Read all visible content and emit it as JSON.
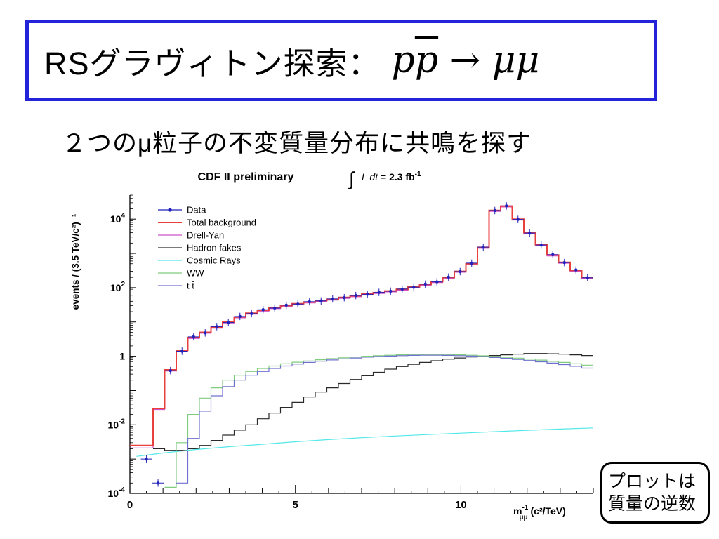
{
  "slide": {
    "title_text": "RSグラヴィトン探索：",
    "title_math_p1": "p",
    "title_math_p2": "p",
    "title_math_rest": " → μμ",
    "subtitle": "２つのμ粒子の不変質量分布に共鳴を探す",
    "callout": {
      "line1": "プロットは",
      "line2": "質量の逆数"
    }
  },
  "colors": {
    "title_box_border": "#2323d9",
    "callout_border": "#000000"
  },
  "chart_data": {
    "type": "line",
    "title_left": "CDF II preliminary",
    "title_right_parts": {
      "integral": "∫",
      "lumi": "L dt",
      "equals": "=",
      "value": "2.3 fb",
      "value_sup": "-1"
    },
    "ylabel": "events / (3.5 TeV/c²)⁻¹",
    "xlabel_parts": {
      "base": "m",
      "sup": "-1",
      "sub": "μμ",
      "rest": " (c²/TeV)"
    },
    "xlim": [
      0,
      14
    ],
    "ylim_log10": [
      -4,
      4.7
    ],
    "x_major_ticks": [
      0,
      5,
      10
    ],
    "y_tick_labels": [
      {
        "exp": 4,
        "base": "10",
        "sup": "4"
      },
      {
        "exp": 2,
        "base": "10",
        "sup": "2"
      },
      {
        "exp": 0,
        "base": "1"
      },
      {
        "exp": -2,
        "base": "10",
        "sup": "-2"
      },
      {
        "exp": -4,
        "base": "10",
        "sup": "-4"
      }
    ],
    "grid": false,
    "legend_position": "top-left-inside",
    "bin_start": 0,
    "bin_width": 0.35,
    "legend_order": [
      "data",
      "total_background",
      "drell_yan",
      "hadron_fakes",
      "cosmic_rays",
      "ww",
      "ttbar"
    ],
    "series": [
      {
        "key": "drell_yan",
        "label": "Drell-Yan",
        "color": "#cf53cb",
        "style": "hist",
        "lw": 1.2,
        "values": [
          0.0021,
          0.0021,
          0.028,
          0.37,
          1.4,
          3.3,
          4.7,
          6.6,
          9.4,
          13.2,
          16.9,
          20.7,
          24.4,
          28.2,
          32,
          35.7,
          39.5,
          43.2,
          48.9,
          54.5,
          61.1,
          67.7,
          75.2,
          84.6,
          98.7,
          117,
          141,
          188,
          282,
          470,
          1410,
          16900,
          22600,
          9400,
          3760,
          1690,
          846,
          517,
          301,
          188
        ]
      },
      {
        "key": "total_background",
        "label": "Total background",
        "color": "#e8413c",
        "style": "hist",
        "lw": 2,
        "values": [
          0.0025,
          0.0025,
          0.03,
          0.4,
          1.5,
          3.5,
          5,
          7,
          10,
          14,
          18,
          22,
          26,
          30,
          34,
          38,
          42,
          46,
          52,
          58,
          65,
          72,
          80,
          90,
          105,
          125,
          150,
          200,
          300,
          500,
          1500,
          18000,
          24000,
          10000,
          4000,
          1800,
          900,
          550,
          320,
          200
        ]
      },
      {
        "key": "hadron_fakes",
        "label": "Hadron fakes",
        "color": "#2a2a2a",
        "style": "hist",
        "lw": 1.2,
        "values": [
          null,
          null,
          0.002,
          0.0018,
          0.0018,
          0.002,
          0.0025,
          0.0035,
          0.005,
          0.007,
          0.01,
          0.015,
          0.022,
          0.032,
          0.045,
          0.065,
          0.09,
          0.12,
          0.16,
          0.21,
          0.27,
          0.34,
          0.42,
          0.5,
          0.58,
          0.66,
          0.74,
          0.82,
          0.89,
          0.95,
          1.0,
          1.05,
          1.1,
          1.15,
          1.2,
          1.2,
          1.18,
          1.15,
          1.1,
          1.05
        ]
      },
      {
        "key": "ww",
        "label": "WW",
        "color": "#7fcc7f",
        "style": "hist",
        "lw": 1.2,
        "values": [
          null,
          null,
          null,
          0.00015,
          0.003,
          0.02,
          0.06,
          0.12,
          0.2,
          0.28,
          0.36,
          0.44,
          0.52,
          0.6,
          0.67,
          0.73,
          0.79,
          0.85,
          0.9,
          0.95,
          1.0,
          1.04,
          1.07,
          1.1,
          1.12,
          1.13,
          1.13,
          1.12,
          1.1,
          1.07,
          1.03,
          0.98,
          0.93,
          0.88,
          0.82,
          0.77,
          0.71,
          0.66,
          0.6,
          0.55
        ]
      },
      {
        "key": "ttbar",
        "label": "t t̄",
        "color": "#7070cf",
        "style": "hist",
        "lw": 1.2,
        "values": [
          null,
          null,
          null,
          null,
          0.0002,
          0.004,
          0.025,
          0.07,
          0.13,
          0.2,
          0.28,
          0.36,
          0.44,
          0.52,
          0.59,
          0.66,
          0.72,
          0.78,
          0.84,
          0.89,
          0.94,
          0.98,
          1.01,
          1.04,
          1.06,
          1.07,
          1.07,
          1.06,
          1.04,
          1.01,
          0.97,
          0.92,
          0.87,
          0.81,
          0.75,
          0.69,
          0.63,
          0.57,
          0.51,
          0.45
        ]
      },
      {
        "key": "cosmic_rays",
        "label": "Cosmic Rays",
        "color": "#53e8e8",
        "style": "line",
        "lw": 1.2,
        "x": [
          0.2,
          1,
          2,
          3,
          4,
          5,
          6,
          7,
          8,
          9,
          10,
          11,
          12,
          13,
          14
        ],
        "y": [
          0.0012,
          0.0015,
          0.0019,
          0.0023,
          0.0027,
          0.0032,
          0.0037,
          0.0042,
          0.0047,
          0.0052,
          0.0057,
          0.0063,
          0.0069,
          0.0075,
          0.0081
        ]
      },
      {
        "key": "data",
        "label": "Data",
        "color": "#2222bb",
        "style": "points",
        "lw": 1.2,
        "points": [
          [
            0.5,
            0.001
          ],
          [
            0.85,
            0.0002
          ],
          [
            1.225,
            0.38
          ],
          [
            1.575,
            1.4
          ],
          [
            1.925,
            3.7
          ],
          [
            2.275,
            4.8
          ],
          [
            2.625,
            7.3
          ],
          [
            2.975,
            9.6
          ],
          [
            3.325,
            14.5
          ],
          [
            3.675,
            17.5
          ],
          [
            4.025,
            22.8
          ],
          [
            4.375,
            25.4
          ],
          [
            4.725,
            30.9
          ],
          [
            5.075,
            33.2
          ],
          [
            5.425,
            39
          ],
          [
            5.775,
            41
          ],
          [
            6.125,
            47
          ],
          [
            6.475,
            51
          ],
          [
            6.825,
            59
          ],
          [
            7.175,
            64
          ],
          [
            7.525,
            73
          ],
          [
            7.875,
            79
          ],
          [
            8.225,
            91
          ],
          [
            8.575,
            103
          ],
          [
            8.925,
            127
          ],
          [
            9.275,
            148
          ],
          [
            9.625,
            204
          ],
          [
            9.975,
            295
          ],
          [
            10.325,
            520
          ],
          [
            10.675,
            1520
          ],
          [
            11.025,
            17800
          ],
          [
            11.375,
            24300
          ],
          [
            11.725,
            9800
          ],
          [
            12.075,
            3900
          ],
          [
            12.425,
            1750
          ],
          [
            12.775,
            920
          ],
          [
            13.125,
            540
          ],
          [
            13.475,
            330
          ],
          [
            13.825,
            195
          ]
        ]
      }
    ]
  }
}
